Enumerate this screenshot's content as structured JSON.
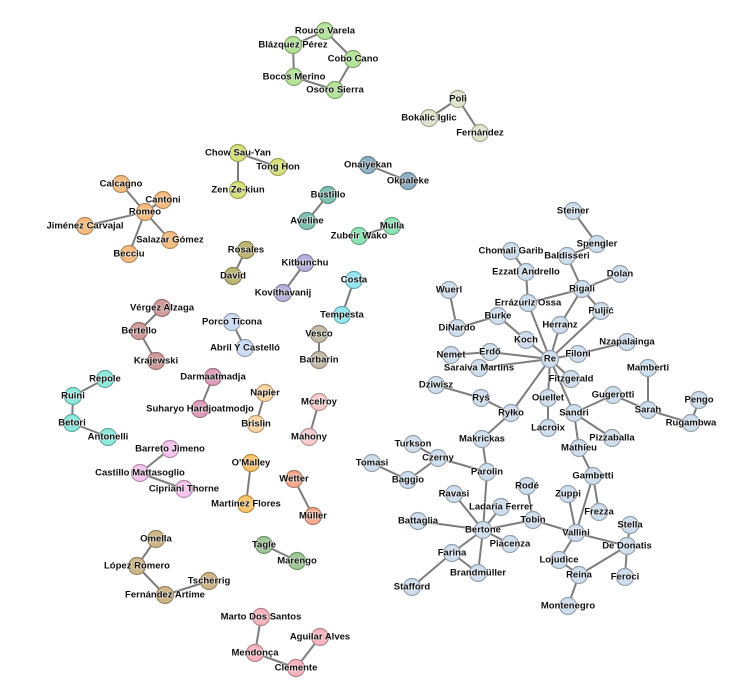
{
  "clusters": [
    {
      "color": "#b4e39a",
      "nodes": [
        "Rouco Varela",
        "Blázquez Pérez",
        "Cobo Cano",
        "Bocos Merino",
        "Osoro Sierra"
      ],
      "edges": [
        [
          "Rouco Varela",
          "Blázquez Pérez"
        ],
        [
          "Rouco Varela",
          "Cobo Cano"
        ],
        [
          "Cobo Cano",
          "Osoro Sierra"
        ],
        [
          "Blázquez Pérez",
          "Bocos Merino"
        ],
        [
          "Bocos Merino",
          "Osoro Sierra"
        ]
      ]
    },
    {
      "color": "#dfe5cc",
      "nodes": [
        "Poli",
        "Bokalic Iglic",
        "Fernández"
      ],
      "edges": [
        [
          "Poli",
          "Bokalic Iglic"
        ],
        [
          "Poli",
          "Fernández"
        ]
      ]
    },
    {
      "color": "#d8e07a",
      "nodes": [
        "Chow Sau-Yan",
        "Tong Hon",
        "Zen Ze-kiun"
      ],
      "edges": [
        [
          "Chow Sau-Yan",
          "Tong Hon"
        ],
        [
          "Chow Sau-Yan",
          "Zen Ze-kiun"
        ]
      ]
    },
    {
      "color": "#8fb0c4",
      "nodes": [
        "Onaiyekan",
        "Okpaleke"
      ],
      "edges": [
        [
          "Onaiyekan",
          "Okpaleke"
        ]
      ]
    },
    {
      "color": "#f7bd80",
      "nodes": [
        "Calcagno",
        "Cantoni",
        "Romeo",
        "Jiménez Carvajal",
        "Salazar Gómez",
        "Becciu"
      ],
      "edges": [
        [
          "Romeo",
          "Calcagno"
        ],
        [
          "Romeo",
          "Cantoni"
        ],
        [
          "Romeo",
          "Jiménez Carvajal"
        ],
        [
          "Romeo",
          "Salazar Gómez"
        ],
        [
          "Romeo",
          "Becciu"
        ]
      ]
    },
    {
      "color": "#7fc2b4",
      "nodes": [
        "Bustillo",
        "Aveline"
      ],
      "edges": [
        [
          "Bustillo",
          "Aveline"
        ]
      ]
    },
    {
      "color": "#8ee3b4",
      "nodes": [
        "Zubeir Wako",
        "Mulla"
      ],
      "edges": [
        [
          "Zubeir Wako",
          "Mulla"
        ]
      ]
    },
    {
      "color": "#bcb574",
      "nodes": [
        "Rosales",
        "David"
      ],
      "edges": [
        [
          "Rosales",
          "David"
        ]
      ]
    },
    {
      "color": "#b8b1dd",
      "nodes": [
        "Kitbunchu",
        "Kovithavanij"
      ],
      "edges": [
        [
          "Kitbunchu",
          "Kovithavanij"
        ]
      ]
    },
    {
      "color": "#94e6f0",
      "nodes": [
        "Costa",
        "Tempesta"
      ],
      "edges": [
        [
          "Costa",
          "Tempesta"
        ]
      ]
    },
    {
      "color": "#d29b9b",
      "nodes": [
        "Vérgez Alzaga",
        "Bertello",
        "Krajewski"
      ],
      "edges": [
        [
          "Vérgez Alzaga",
          "Bertello"
        ],
        [
          "Bertello",
          "Krajewski"
        ]
      ]
    },
    {
      "color": "#cddcf5",
      "nodes": [
        "Porco Ticona",
        "Abril Y Castelló"
      ],
      "edges": [
        [
          "Porco Ticona",
          "Abril Y Castelló"
        ]
      ]
    },
    {
      "color": "#c4bca8",
      "nodes": [
        "Vesco",
        "Barbarin"
      ],
      "edges": [
        [
          "Vesco",
          "Barbarin"
        ]
      ]
    },
    {
      "color": "#8de9dc",
      "nodes": [
        "Repole",
        "Ruini",
        "Betori",
        "Antonelli"
      ],
      "edges": [
        [
          "Ruini",
          "Repole"
        ],
        [
          "Ruini",
          "Betori"
        ],
        [
          "Betori",
          "Antonelli"
        ]
      ]
    },
    {
      "color": "#df9fbc",
      "nodes": [
        "Darmaatmadja",
        "Suharyo Hardjoatmodjo"
      ],
      "edges": [
        [
          "Darmaatmadja",
          "Suharyo Hardjoatmodjo"
        ]
      ]
    },
    {
      "color": "#fbd6a2",
      "nodes": [
        "Napier",
        "Brislin"
      ],
      "edges": [
        [
          "Napier",
          "Brislin"
        ]
      ]
    },
    {
      "color": "#f8cccc",
      "nodes": [
        "Mcelroy",
        "Mahony"
      ],
      "edges": [
        [
          "Mcelroy",
          "Mahony"
        ]
      ]
    },
    {
      "color": "#f6c4ef",
      "nodes": [
        "Barreto Jimeno",
        "Castillo Mattasoglio",
        "Cipriani Thorne"
      ],
      "edges": [
        [
          "Castillo Mattasoglio",
          "Barreto Jimeno"
        ],
        [
          "Castillo Mattasoglio",
          "Cipriani Thorne"
        ]
      ]
    },
    {
      "color": "#fbc46a",
      "nodes": [
        "O'Malley",
        "Martínez Flores"
      ],
      "edges": [
        [
          "O'Malley",
          "Martínez Flores"
        ]
      ]
    },
    {
      "color": "#f6aa8e",
      "nodes": [
        "Wetter",
        "Müller"
      ],
      "edges": [
        [
          "Wetter",
          "Müller"
        ]
      ]
    },
    {
      "color": "#cfb688",
      "nodes": [
        "Omella",
        "López Romero",
        "Tscherrig",
        "Fernández Artime"
      ],
      "edges": [
        [
          "Omella",
          "López Romero"
        ],
        [
          "López Romero",
          "Fernández Artime"
        ],
        [
          "Fernández Artime",
          "Tscherrig"
        ]
      ]
    },
    {
      "color": "#9ec996",
      "nodes": [
        "Tagle",
        "Marengo"
      ],
      "edges": [
        [
          "Tagle",
          "Marengo"
        ]
      ]
    },
    {
      "color": "#f8b4c0",
      "nodes": [
        "Marto Dos Santos",
        "Aguilar Alves",
        "Mendonça",
        "Clemente"
      ],
      "edges": [
        [
          "Marto Dos Santos",
          "Mendonça"
        ],
        [
          "Mendonça",
          "Clemente"
        ],
        [
          "Clemente",
          "Aguilar Alves"
        ]
      ]
    },
    {
      "color": "#cfdeed",
      "nodes": [
        "Steiner",
        "Spengler",
        "Chomali Garib",
        "Ezzati Andrello",
        "Baldisseri",
        "Dolan",
        "Rigali",
        "Wuerl",
        "Errázuriz Ossa",
        "Burke",
        "Puljić",
        "DiNardo",
        "Herranz",
        "Koch",
        "Nzapalainga",
        "Nemet",
        "Erdő",
        "Re",
        "Filoni",
        "Saraiva Martins",
        "Fitzgerald",
        "Mamberti",
        "Dziwisz",
        "Ryś",
        "Ouellet",
        "Gugerotti",
        "Pengo",
        "Sarah",
        "Ryłko",
        "Sandri",
        "Lacroix",
        "Rugambwa",
        "Makrickas",
        "Pizzaballa",
        "Turkson",
        "Czerny",
        "Tomasi",
        "Baggio",
        "Parolin",
        "Mathieu",
        "Gambetti",
        "Rodé",
        "Ravasi",
        "Zuppi",
        "Ladaria Ferrer",
        "Frezza",
        "Battaglia",
        "Tobin",
        "Bertone",
        "Vallini",
        "Stella",
        "De Donatis",
        "Piacenza",
        "Farina",
        "Lojudice",
        "Reina",
        "Feroci",
        "Brandmüller",
        "Stafford",
        "Montenegro"
      ],
      "edges": [
        [
          "Steiner",
          "Spengler"
        ],
        [
          "Spengler",
          "Baldisseri"
        ],
        [
          "Baldisseri",
          "Rigali"
        ],
        [
          "Rigali",
          "Dolan"
        ],
        [
          "Rigali",
          "Puljić"
        ],
        [
          "Rigali",
          "Herranz"
        ],
        [
          "Rigali",
          "Errázuriz Ossa"
        ],
        [
          "Chomali Garib",
          "Ezzati Andrello"
        ],
        [
          "Ezzati Andrello",
          "Errázuriz Ossa"
        ],
        [
          "Errázuriz Ossa",
          "Re"
        ],
        [
          "Wuerl",
          "DiNardo"
        ],
        [
          "DiNardo",
          "Burke"
        ],
        [
          "Burke",
          "Koch"
        ],
        [
          "Koch",
          "Re"
        ],
        [
          "Herranz",
          "Re"
        ],
        [
          "Puljić",
          "Re"
        ],
        [
          "Nemet",
          "Erdő"
        ],
        [
          "Erdő",
          "Re"
        ],
        [
          "Saraiva Martins",
          "Re"
        ],
        [
          "Re",
          "Filoni"
        ],
        [
          "Filoni",
          "Nzapalainga"
        ],
        [
          "Re",
          "Fitzgerald"
        ],
        [
          "Re",
          "Ouellet"
        ],
        [
          "Ouellet",
          "Lacroix"
        ],
        [
          "Re",
          "Sandri"
        ],
        [
          "Re",
          "Ryłko"
        ],
        [
          "Dziwisz",
          "Ryś"
        ],
        [
          "Ryś",
          "Ryłko"
        ],
        [
          "Ryłko",
          "Makrickas"
        ],
        [
          "Sandri",
          "Gugerotti"
        ],
        [
          "Gugerotti",
          "Sarah"
        ],
        [
          "Mamberti",
          "Sarah"
        ],
        [
          "Sarah",
          "Rugambwa"
        ],
        [
          "Rugambwa",
          "Pengo"
        ],
        [
          "Sandri",
          "Pizzaballa"
        ],
        [
          "Sandri",
          "Mathieu"
        ],
        [
          "Turkson",
          "Czerny"
        ],
        [
          "Czerny",
          "Baggio"
        ],
        [
          "Tomasi",
          "Baggio"
        ],
        [
          "Czerny",
          "Parolin"
        ],
        [
          "Makrickas",
          "Parolin"
        ],
        [
          "Parolin",
          "Bertone"
        ],
        [
          "Ravasi",
          "Bertone"
        ],
        [
          "Ladaria Ferrer",
          "Bertone"
        ],
        [
          "Battaglia",
          "Bertone"
        ],
        [
          "Bertone",
          "Tobin"
        ],
        [
          "Bertone",
          "Piacenza"
        ],
        [
          "Bertone",
          "Farina"
        ],
        [
          "Bertone",
          "Brandmüller"
        ],
        [
          "Farina",
          "Brandmüller"
        ],
        [
          "Farina",
          "Stafford"
        ],
        [
          "Rodé",
          "Tobin"
        ],
        [
          "Tobin",
          "Vallini"
        ],
        [
          "Zuppi",
          "Vallini"
        ],
        [
          "Gambetti",
          "Vallini"
        ],
        [
          "Gambetti",
          "Frezza"
        ],
        [
          "Mathieu",
          "Gambetti"
        ],
        [
          "Vallini",
          "De Donatis"
        ],
        [
          "Stella",
          "De Donatis"
        ],
        [
          "De Donatis",
          "Feroci"
        ],
        [
          "De Donatis",
          "Reina"
        ],
        [
          "Vallini",
          "Lojudice"
        ],
        [
          "Lojudice",
          "Reina"
        ],
        [
          "Reina",
          "Montenegro"
        ]
      ]
    }
  ]
}
